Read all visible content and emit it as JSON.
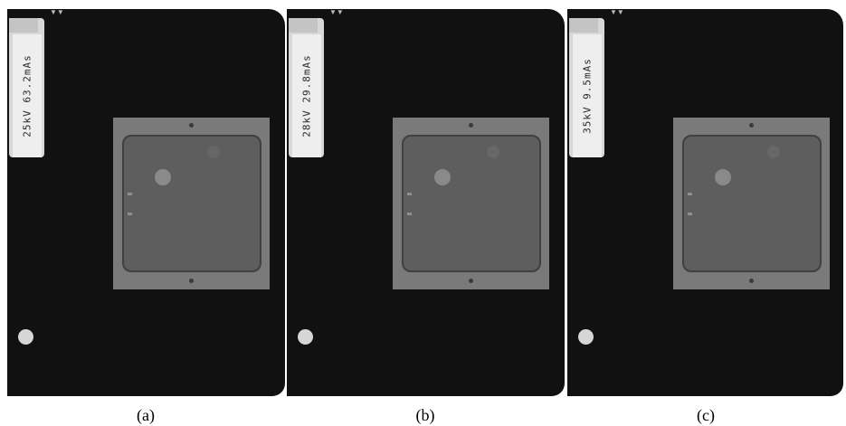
{
  "panels": [
    {
      "caption": "(a)",
      "film_label": "25kV 63.2mAs"
    },
    {
      "caption": "(b)",
      "film_label": "28kV 29.8mAs"
    },
    {
      "caption": "(c)",
      "film_label": "35kV 9.5mAs"
    }
  ],
  "colors": {
    "film_background": "#111111",
    "holder": "#7a7a7a",
    "phantom": "#5e5e5e",
    "label_strip": "#eeeeee"
  }
}
